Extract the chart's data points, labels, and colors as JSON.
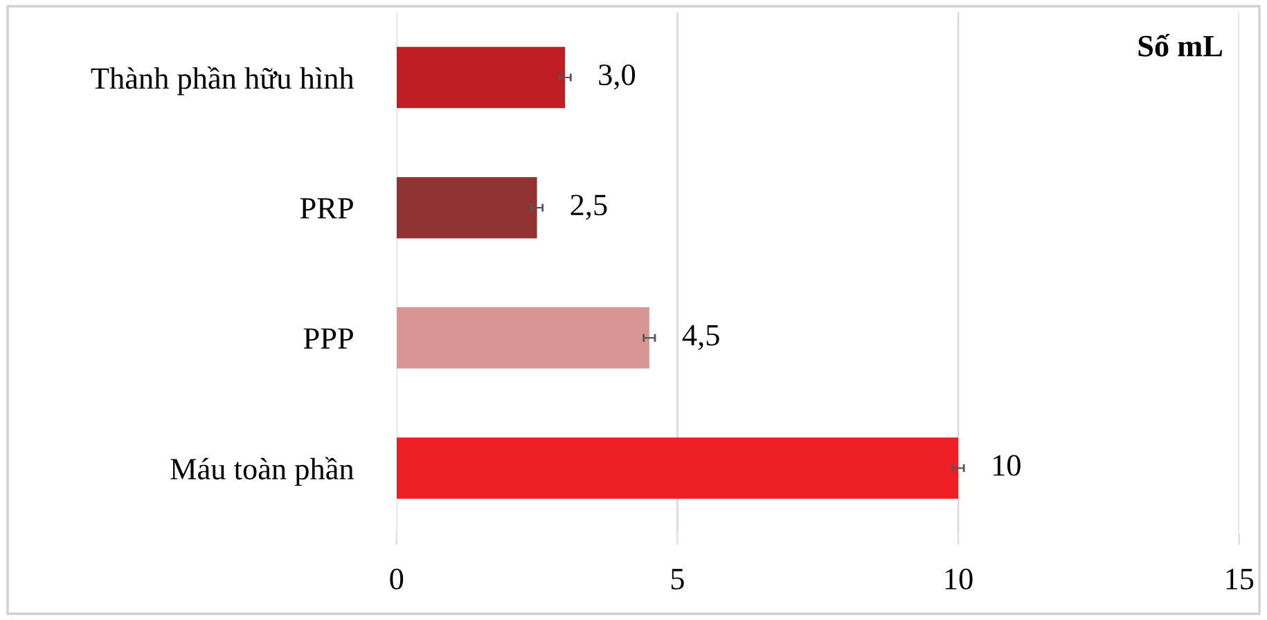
{
  "chart_data": {
    "type": "bar",
    "orientation": "horizontal",
    "categories": [
      "Thành phần hữu hình",
      "PRP",
      "PPP",
      "Máu toàn phần"
    ],
    "values": [
      3.0,
      2.5,
      4.5,
      10
    ],
    "colors": [
      "#be1e24",
      "#923333",
      "#d99594",
      "#ee1f24"
    ],
    "errors": [
      0.1,
      0.1,
      0.1,
      0.1
    ],
    "value_labels": [
      "3,0",
      "2,5",
      "4,5",
      "10"
    ],
    "xlim": [
      0,
      15
    ],
    "xticks": [
      0,
      5,
      10,
      15
    ],
    "grid": "x",
    "annotations": [
      "Số mL"
    ]
  }
}
